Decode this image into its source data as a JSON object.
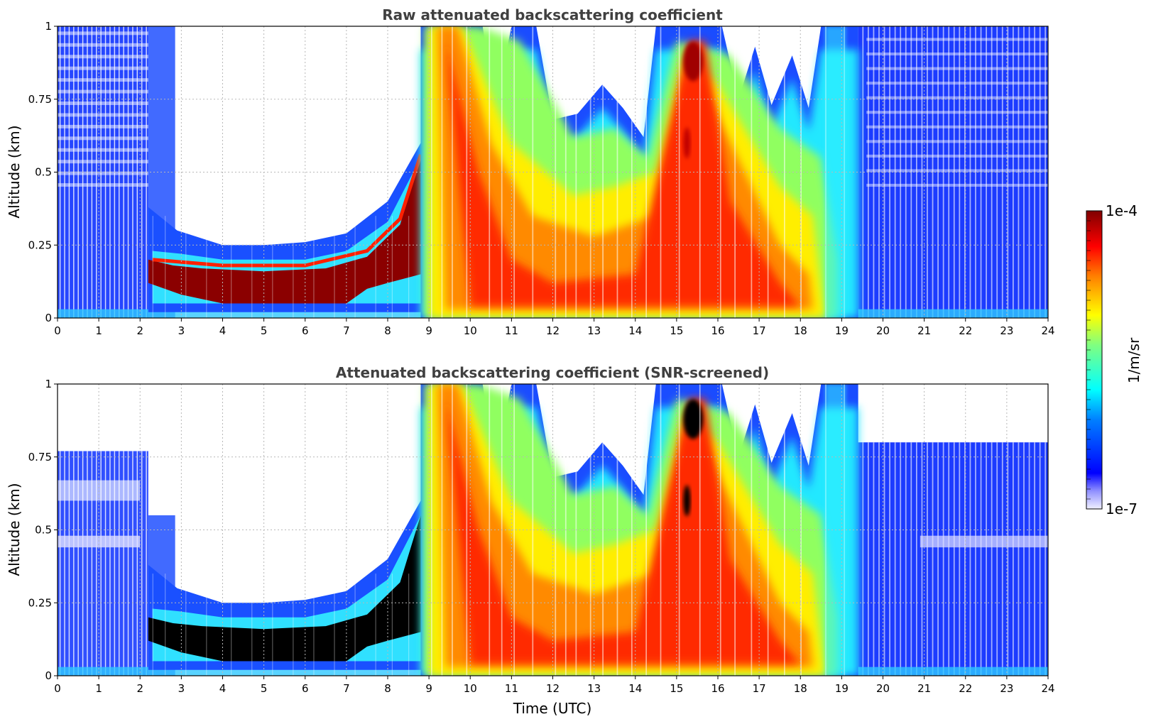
{
  "chart_data": [
    {
      "type": "heatmap",
      "title": "Raw attenuated backscattering coefficient",
      "xlabel": "",
      "ylabel": "Altitude (km)",
      "xlim": [
        0,
        24
      ],
      "ylim": [
        0,
        1
      ],
      "xticks": [
        0,
        1,
        2,
        3,
        4,
        5,
        6,
        7,
        8,
        9,
        10,
        11,
        12,
        13,
        14,
        15,
        16,
        17,
        18,
        19,
        20,
        21,
        22,
        23,
        24
      ],
      "yticks": [
        0,
        0.25,
        0.5,
        0.75,
        1
      ],
      "ytick_labels": [
        "0",
        "0.25",
        "0.5",
        "0.75",
        "1"
      ],
      "grid": true,
      "screened": false
    },
    {
      "type": "heatmap",
      "title": "Attenuated backscattering coefficient (SNR-screened)",
      "xlabel": "Time (UTC)",
      "ylabel": "Altitude (km)",
      "xlim": [
        0,
        24
      ],
      "ylim": [
        0,
        1
      ],
      "xticks": [
        0,
        1,
        2,
        3,
        4,
        5,
        6,
        7,
        8,
        9,
        10,
        11,
        12,
        13,
        14,
        15,
        16,
        17,
        18,
        19,
        20,
        21,
        22,
        23,
        24
      ],
      "yticks": [
        0,
        0.25,
        0.5,
        0.75,
        1
      ],
      "ytick_labels": [
        "0",
        "0.25",
        "0.5",
        "0.75",
        "1"
      ],
      "grid": true,
      "screened": true
    }
  ],
  "colorbar": {
    "label": "1/m/sr",
    "max_label": "1e-4",
    "min_label": "1e-7",
    "scale": "log",
    "colormap": "jet"
  }
}
